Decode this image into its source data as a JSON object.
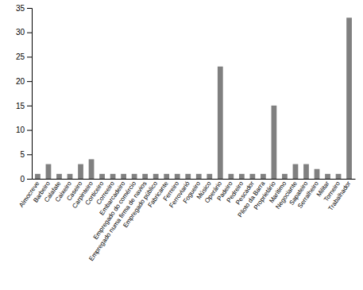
{
  "chart_data": {
    "type": "bar",
    "categories": [
      "Almocreve",
      "Barbeiro",
      "Calafate",
      "Caixeiro",
      "Caseiro",
      "Carpinteiro",
      "Corticeiro",
      "Correeiro",
      "Embarcadeiro",
      "Empregado do comércio",
      "Empregado numa firma de navios",
      "Empregado público",
      "Fabricante",
      "Ferreiro",
      "Ferroviarió",
      "Fogueiro",
      "Músico",
      "Operário",
      "Padeiro",
      "Pedreiro",
      "Pescador",
      "Piloto da Barra",
      "Proprietário",
      "Marítimo",
      "Negociante",
      "Sapateiro",
      "Serralheiro",
      "Militar",
      "Torneiro",
      "Trabalhador"
    ],
    "values": [
      1,
      3,
      1,
      1,
      3,
      4,
      1,
      1,
      1,
      1,
      1,
      1,
      1,
      1,
      1,
      1,
      1,
      23,
      1,
      1,
      1,
      1,
      15,
      1,
      3,
      3,
      2,
      1,
      1,
      33
    ],
    "color": "#808080",
    "ylim": [
      0,
      35
    ],
    "yticks": [
      0,
      5,
      10,
      15,
      20,
      25,
      30,
      35
    ]
  }
}
